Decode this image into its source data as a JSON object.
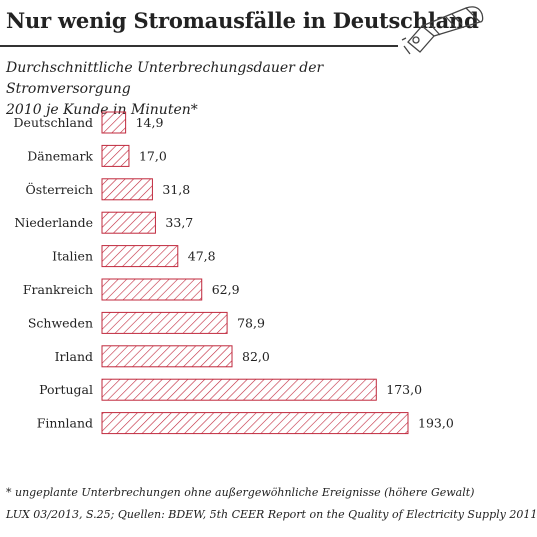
{
  "header": {
    "title": "Nur wenig Stromausfälle in Deutschland",
    "subtitle_line1": "Durchschnittliche Unterbrechungsdauer der Stromversorgung",
    "subtitle_line2": "2010 je Kunde in Minuten*"
  },
  "footer": {
    "note": "* ungeplante Unterbrechungen ohne außergewöhnliche Ereignisse (höhere Gewalt)",
    "source": "LUX 03/2013, S.25; Quellen: BDEW, 5th CEER Report on the Quality of Electricity Supply 2011"
  },
  "colors": {
    "hatch": "#c0283c",
    "text": "#222222"
  },
  "icons": [
    "flashlight-icon"
  ],
  "chart_data": {
    "type": "bar",
    "orientation": "horizontal",
    "title": "Nur wenig Stromausfälle in Deutschland",
    "categories": [
      "Deutschland",
      "Dänemark",
      "Österreich",
      "Niederlande",
      "Italien",
      "Frankreich",
      "Schweden",
      "Irland",
      "Portugal",
      "Finnland"
    ],
    "values": [
      14.9,
      17.0,
      31.8,
      33.7,
      47.8,
      62.9,
      78.9,
      82.0,
      173.0,
      193.0
    ],
    "value_labels": [
      "14,9",
      "17,0",
      "31,8",
      "33,7",
      "47,8",
      "62,9",
      "78,9",
      "82,0",
      "173,0",
      "193,0"
    ],
    "xlim": [
      0,
      193.0
    ],
    "grid": false
  }
}
